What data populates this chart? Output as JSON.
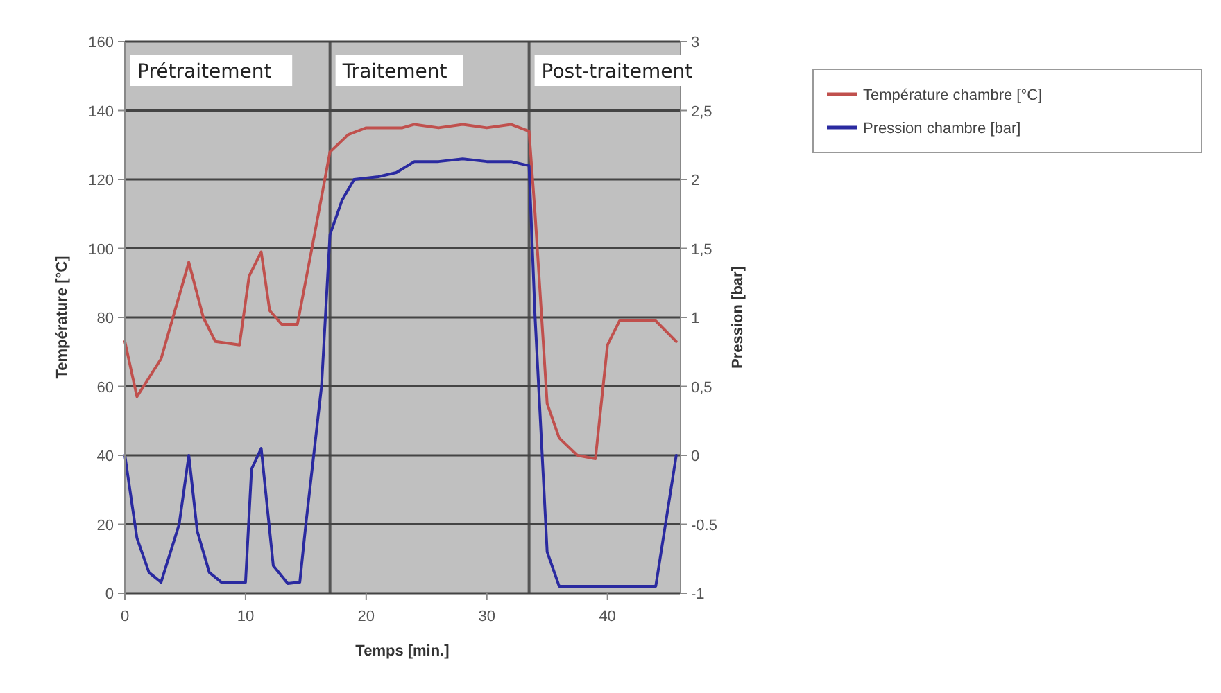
{
  "chart_data": {
    "type": "line",
    "xlabel": "Temps [min.]",
    "ylabel": "Température [°C]",
    "y2label": "Pression [bar]",
    "xlim": [
      0,
      46
    ],
    "xticks": [
      0,
      10,
      20,
      30,
      40
    ],
    "ylim": [
      0,
      160
    ],
    "yticks": [
      0,
      20,
      40,
      60,
      80,
      100,
      120,
      140,
      160
    ],
    "y2lim": [
      -1,
      3
    ],
    "y2ticks": [
      -1,
      -0.5,
      {
        "value": 0,
        "label": "0"
      },
      {
        "value": 0.5,
        "label": "0,5"
      },
      1,
      {
        "value": 1.5,
        "label": "1,5"
      },
      2,
      {
        "value": 2.5,
        "label": "2,5"
      },
      3
    ],
    "ref_lines": [
      {
        "axis": "x",
        "value": 17,
        "color": "#555555"
      },
      {
        "axis": "x",
        "value": 33.5,
        "color": "#555555"
      }
    ],
    "grid": "y",
    "legend": "right",
    "marker": "none",
    "line_style": "solid",
    "bands": [
      {
        "axis": "x",
        "from": 0,
        "to": 17,
        "label": "Prétraitement",
        "color": "#c0c0c0"
      },
      {
        "axis": "x",
        "from": 17,
        "to": 33.5,
        "label": "Traitement",
        "color": "#c0c0c0"
      },
      {
        "axis": "x",
        "from": 33.5,
        "to": 46,
        "label": "Post-traitement",
        "color": "#c0c0c0"
      }
    ],
    "series": [
      {
        "name": "Température chambre [°C]",
        "color": "#c0504d",
        "x": [
          0,
          1,
          3,
          5.3,
          6.5,
          7.5,
          9.5,
          10.3,
          11.3,
          12,
          13,
          14.3,
          15.5,
          17,
          18.5,
          20,
          23,
          24,
          26,
          28,
          30,
          32,
          33.5,
          34,
          35,
          36,
          37.5,
          39,
          40,
          41,
          44,
          45.7
        ],
        "values": [
          73,
          57,
          68,
          96,
          80,
          73,
          72,
          92,
          99,
          82,
          78,
          78,
          100,
          128,
          133,
          135,
          135,
          136,
          135,
          136,
          135,
          136,
          134,
          110,
          55,
          45,
          40,
          39,
          72,
          79,
          79,
          73
        ]
      },
      {
        "name": "Pression chambre [bar]",
        "color": "#2a2aa0",
        "axis": "y2",
        "x": [
          0,
          1,
          2,
          3,
          4.5,
          5.3,
          6,
          7,
          8,
          10,
          10.5,
          11.3,
          12.3,
          13.5,
          14.5,
          15,
          16.3,
          17,
          18,
          19,
          21,
          22.5,
          24,
          26,
          28,
          30,
          32,
          33.5,
          34,
          35,
          36,
          40,
          44,
          45.7
        ],
        "values": [
          0,
          -0.6,
          -0.85,
          -0.92,
          -0.5,
          0,
          -0.55,
          -0.85,
          -0.92,
          -0.92,
          -0.1,
          0.05,
          -0.8,
          -0.93,
          -0.92,
          -0.5,
          0.5,
          1.6,
          1.85,
          2,
          2.02,
          2.05,
          2.13,
          2.13,
          2.15,
          2.13,
          2.13,
          2.1,
          1,
          -0.7,
          -0.95,
          -0.95,
          -0.95,
          0
        ]
      }
    ]
  }
}
